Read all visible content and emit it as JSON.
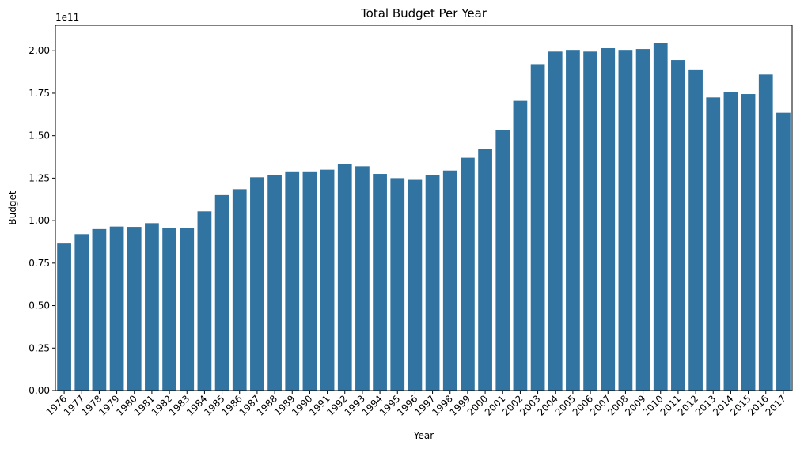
{
  "chart_data": {
    "type": "bar",
    "title": "Total Budget Per Year",
    "xlabel": "Year",
    "ylabel": "Budget",
    "y_offset_label": "1e11",
    "ylim": [
      0,
      2.15
    ],
    "y_ticks": [
      "0.00",
      "0.25",
      "0.50",
      "0.75",
      "1.00",
      "1.25",
      "1.50",
      "1.75",
      "2.00"
    ],
    "bar_color": "#3274a1",
    "grid": false,
    "categories": [
      "1976",
      "1977",
      "1978",
      "1979",
      "1980",
      "1981",
      "1982",
      "1983",
      "1984",
      "1985",
      "1986",
      "1987",
      "1988",
      "1989",
      "1990",
      "1991",
      "1992",
      "1993",
      "1994",
      "1995",
      "1996",
      "1997",
      "1998",
      "1999",
      "2000",
      "2001",
      "2002",
      "2003",
      "2004",
      "2005",
      "2006",
      "2007",
      "2008",
      "2009",
      "2010",
      "2011",
      "2012",
      "2013",
      "2014",
      "2015",
      "2016",
      "2017"
    ],
    "values": [
      0.865,
      0.92,
      0.95,
      0.965,
      0.963,
      0.985,
      0.958,
      0.955,
      1.055,
      1.15,
      1.185,
      1.255,
      1.27,
      1.29,
      1.29,
      1.3,
      1.335,
      1.32,
      1.275,
      1.25,
      1.24,
      1.27,
      1.295,
      1.37,
      1.42,
      1.535,
      1.705,
      1.92,
      1.995,
      2.005,
      1.995,
      2.015,
      2.005,
      2.01,
      2.045,
      1.945,
      1.89,
      1.725,
      1.755,
      1.745,
      1.86,
      1.635
    ]
  }
}
